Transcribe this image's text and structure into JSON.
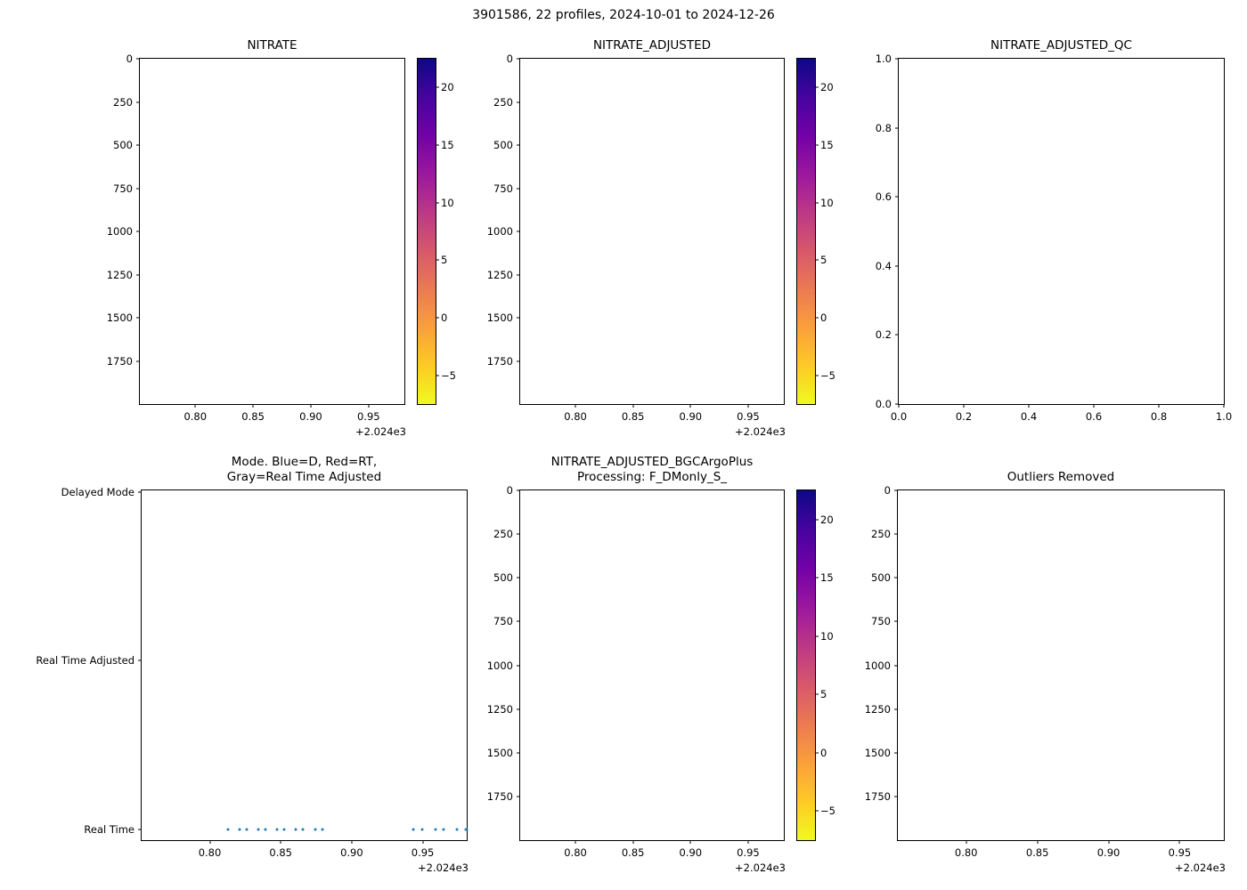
{
  "figure": {
    "suptitle": "3901586, 22 profiles, 2024-10-01 to 2024-12-26",
    "background": "#ffffff"
  },
  "chart_data": [
    {
      "id": "nitrate",
      "type": "scatter",
      "title": "NITRATE",
      "xlim": [
        2024.752,
        2024.981
      ],
      "ylim": [
        2000,
        0
      ],
      "xticks": [
        2024.8,
        2024.85,
        2024.9,
        2024.95
      ],
      "xtick_labels": [
        "0.80",
        "0.85",
        "0.90",
        "0.95"
      ],
      "x_offset_text": "+2.024e3",
      "yticks": [
        0,
        250,
        500,
        750,
        1000,
        1250,
        1500,
        1750
      ],
      "ytick_labels": [
        "0",
        "250",
        "500",
        "750",
        "1000",
        "1250",
        "1500",
        "1750"
      ],
      "points": [],
      "colorbar": {
        "vmin": -7.5,
        "vmax": 22.5,
        "ticks": [
          20,
          15,
          10,
          5,
          0,
          -5
        ],
        "tick_labels": [
          "20",
          "15",
          "10",
          "5",
          "0",
          "−5"
        ],
        "colormap": "plasma",
        "colors_top_to_bottom": [
          "#0d0887",
          "#46039f",
          "#7201a8",
          "#9c179e",
          "#bd3786",
          "#d8576b",
          "#ed7953",
          "#fb9f3a",
          "#fdca26",
          "#f0f921"
        ]
      }
    },
    {
      "id": "nitrate-adjusted",
      "type": "scatter",
      "title": "NITRATE_ADJUSTED",
      "xlim": [
        2024.752,
        2024.981
      ],
      "ylim": [
        2000,
        0
      ],
      "xticks": [
        2024.8,
        2024.85,
        2024.9,
        2024.95
      ],
      "xtick_labels": [
        "0.80",
        "0.85",
        "0.90",
        "0.95"
      ],
      "x_offset_text": "+2.024e3",
      "yticks": [
        0,
        250,
        500,
        750,
        1000,
        1250,
        1500,
        1750
      ],
      "ytick_labels": [
        "0",
        "250",
        "500",
        "750",
        "1000",
        "1250",
        "1500",
        "1750"
      ],
      "points": [],
      "colorbar": {
        "vmin": -7.5,
        "vmax": 22.5,
        "ticks": [
          20,
          15,
          10,
          5,
          0,
          -5
        ],
        "tick_labels": [
          "20",
          "15",
          "10",
          "5",
          "0",
          "−5"
        ],
        "colormap": "plasma",
        "colors_top_to_bottom": [
          "#0d0887",
          "#46039f",
          "#7201a8",
          "#9c179e",
          "#bd3786",
          "#d8576b",
          "#ed7953",
          "#fb9f3a",
          "#fdca26",
          "#f0f921"
        ]
      }
    },
    {
      "id": "nitrate-adjusted-qc",
      "type": "scatter",
      "title": "NITRATE_ADJUSTED_QC",
      "xlim": [
        0,
        1
      ],
      "ylim": [
        0,
        1
      ],
      "xticks": [
        0,
        0.2,
        0.4,
        0.6,
        0.8,
        1.0
      ],
      "xtick_labels": [
        "0.0",
        "0.2",
        "0.4",
        "0.6",
        "0.8",
        "1.0"
      ],
      "yticks": [
        0,
        0.2,
        0.4,
        0.6,
        0.8,
        1.0
      ],
      "ytick_labels": [
        "0.0",
        "0.2",
        "0.4",
        "0.6",
        "0.8",
        "1.0"
      ],
      "points": []
    },
    {
      "id": "mode",
      "type": "scatter",
      "title": "Mode. Blue=D, Red=RT,\nGray=Real Time Adjusted",
      "xlim": [
        2024.752,
        2024.981
      ],
      "ylim": [
        -0.065,
        2.01
      ],
      "xticks": [
        2024.8,
        2024.85,
        2024.9,
        2024.95
      ],
      "xtick_labels": [
        "0.80",
        "0.85",
        "0.90",
        "0.95"
      ],
      "x_offset_text": "+2.024e3",
      "yticks": [
        2,
        1,
        0
      ],
      "ytick_labels": [
        "Delayed Mode",
        "Real Time Adjusted",
        "Real Time"
      ],
      "marker_color": "#2478b4",
      "points": [
        {
          "x": 2024.8131,
          "y": 0
        },
        {
          "x": 2024.8213,
          "y": 0
        },
        {
          "x": 2024.8263,
          "y": 0
        },
        {
          "x": 2024.8344,
          "y": 0
        },
        {
          "x": 2024.8394,
          "y": 0
        },
        {
          "x": 2024.8475,
          "y": 0
        },
        {
          "x": 2024.8525,
          "y": 0
        },
        {
          "x": 2024.8606,
          "y": 0
        },
        {
          "x": 2024.8656,
          "y": 0
        },
        {
          "x": 2024.8744,
          "y": 0
        },
        {
          "x": 2024.8794,
          "y": 0
        },
        {
          "x": 2024.9431,
          "y": 0
        },
        {
          "x": 2024.9494,
          "y": 0
        },
        {
          "x": 2024.9588,
          "y": 0
        },
        {
          "x": 2024.965,
          "y": 0
        },
        {
          "x": 2024.9744,
          "y": 0
        },
        {
          "x": 2024.9806,
          "y": 0
        },
        {
          "x": 2024.9844,
          "y": 0
        }
      ]
    },
    {
      "id": "nitrate-adjusted-bgcargoplus",
      "type": "scatter",
      "title": "NITRATE_ADJUSTED_BGCArgoPlus\nProcessing: F_DMonly_S_",
      "xlim": [
        2024.752,
        2024.981
      ],
      "ylim": [
        2000,
        0
      ],
      "xticks": [
        2024.8,
        2024.85,
        2024.9,
        2024.95
      ],
      "xtick_labels": [
        "0.80",
        "0.85",
        "0.90",
        "0.95"
      ],
      "x_offset_text": "+2.024e3",
      "yticks": [
        0,
        250,
        500,
        750,
        1000,
        1250,
        1500,
        1750
      ],
      "ytick_labels": [
        "0",
        "250",
        "500",
        "750",
        "1000",
        "1250",
        "1500",
        "1750"
      ],
      "points": [],
      "colorbar": {
        "vmin": -7.5,
        "vmax": 22.5,
        "ticks": [
          20,
          15,
          10,
          5,
          0,
          -5
        ],
        "tick_labels": [
          "20",
          "15",
          "10",
          "5",
          "0",
          "−5"
        ],
        "colormap": "plasma",
        "colors_top_to_bottom": [
          "#0d0887",
          "#46039f",
          "#7201a8",
          "#9c179e",
          "#bd3786",
          "#d8576b",
          "#ed7953",
          "#fb9f3a",
          "#fdca26",
          "#f0f921"
        ]
      }
    },
    {
      "id": "outliers-removed",
      "type": "scatter",
      "title": "Outliers Removed",
      "xlim": [
        2024.752,
        2024.981
      ],
      "ylim": [
        2000,
        0
      ],
      "xticks": [
        2024.8,
        2024.85,
        2024.9,
        2024.95
      ],
      "xtick_labels": [
        "0.80",
        "0.85",
        "0.90",
        "0.95"
      ],
      "x_offset_text": "+2.024e3",
      "yticks": [
        0,
        250,
        500,
        750,
        1000,
        1250,
        1500,
        1750
      ],
      "ytick_labels": [
        "0",
        "250",
        "500",
        "750",
        "1000",
        "1250",
        "1500",
        "1750"
      ],
      "points": []
    }
  ]
}
